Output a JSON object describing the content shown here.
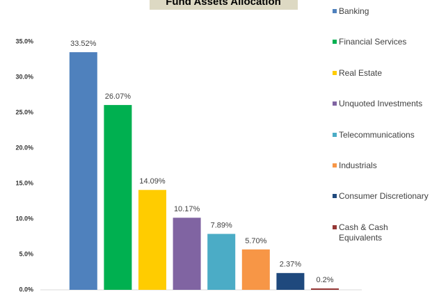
{
  "chart_data": {
    "type": "bar",
    "title": "Fund Assets Allocation",
    "categories": [
      "Banking",
      "Financial Services",
      "Real Estate",
      "Unquoted Investments",
      "Telecommunications",
      "Industrials",
      "Consumer Discretionary",
      "Cash & Cash Equivalents"
    ],
    "values": [
      33.52,
      26.07,
      14.09,
      10.17,
      7.89,
      5.7,
      2.37,
      0.2
    ],
    "value_labels": [
      "33.52%",
      "26.07%",
      "14.09%",
      "10.17%",
      "7.89%",
      "5.70%",
      "2.37%",
      "0.2%"
    ],
    "colors": [
      "#4f81bd",
      "#00b050",
      "#ffcc00",
      "#8064a2",
      "#4bacc6",
      "#f79646",
      "#1f497d",
      "#953735"
    ],
    "ylim": [
      0,
      35
    ],
    "yticks": [
      {
        "value": 0,
        "label": "0.0%"
      },
      {
        "value": 5,
        "label": "5.0%"
      },
      {
        "value": 10,
        "label": "10.0%"
      },
      {
        "value": 15,
        "label": "15.0%"
      },
      {
        "value": 20,
        "label": "20.0%"
      },
      {
        "value": 25,
        "label": "25.0%"
      },
      {
        "value": 30,
        "label": "30.0%"
      },
      {
        "value": 35,
        "label": "35.0%"
      }
    ],
    "legend": "right"
  }
}
